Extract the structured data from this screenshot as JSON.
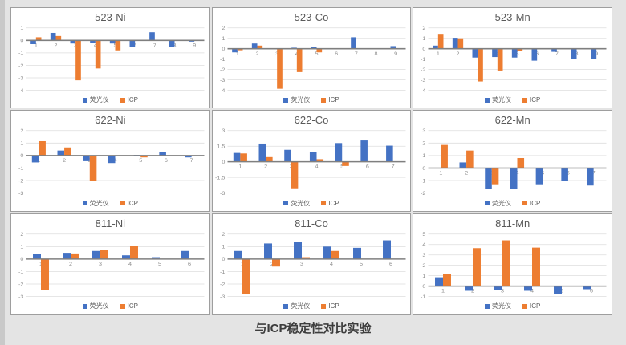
{
  "page": {
    "title": "与ICP稳定性对比实验"
  },
  "colors": {
    "series1": "#4472C4",
    "series2": "#ED7D31",
    "axis": "#7f7f7f",
    "gridline": "#dedede",
    "tick_label": "#8c8c8c",
    "chart_title": "#595959",
    "panel_border": "#9e9e9e",
    "background": "#e4e4e4"
  },
  "chart_data": [
    {
      "type": "bar",
      "title": "523-Ni",
      "categories": [
        "1",
        "2",
        "3",
        "4",
        "5",
        "6",
        "7",
        "8",
        "9"
      ],
      "series": [
        {
          "name": "荧光仪",
          "values": [
            -0.3,
            0.6,
            -0.25,
            -0.2,
            -0.25,
            -0.5,
            0.65,
            -0.5,
            -0.1
          ]
        },
        {
          "name": "ICP",
          "values": [
            0.25,
            0.35,
            -3.2,
            -2.25,
            -0.8,
            0,
            0,
            0,
            0
          ]
        }
      ],
      "ylim": [
        -4,
        1
      ],
      "yticks": [
        1,
        0,
        -1,
        -2,
        -3,
        -4
      ],
      "legend_position": "bottom",
      "grid": true
    },
    {
      "type": "bar",
      "title": "523-Co",
      "categories": [
        "1",
        "2",
        "3",
        "4",
        "5",
        "6",
        "7",
        "8",
        "9"
      ],
      "series": [
        {
          "name": "荧光仪",
          "values": [
            -0.35,
            0.5,
            -0.05,
            0.1,
            0.15,
            0,
            1.1,
            0,
            0.25
          ]
        },
        {
          "name": "ICP",
          "values": [
            -0.15,
            0.3,
            -3.85,
            -2.25,
            -0.35,
            0,
            0,
            0,
            0
          ]
        }
      ],
      "ylim": [
        -4,
        2
      ],
      "yticks": [
        2,
        1,
        0,
        -1,
        -2,
        -3,
        -4
      ],
      "legend_position": "bottom",
      "grid": true
    },
    {
      "type": "bar",
      "title": "523-Mn",
      "categories": [
        "1",
        "2",
        "3",
        "4",
        "5",
        "6",
        "7",
        "8",
        "9"
      ],
      "series": [
        {
          "name": "荧光仪",
          "values": [
            0.3,
            1.05,
            -0.85,
            -0.8,
            -0.85,
            -1.15,
            -0.3,
            -1.0,
            -0.95
          ]
        },
        {
          "name": "ICP",
          "values": [
            1.35,
            1.0,
            -3.15,
            -2.1,
            -0.25,
            0,
            0,
            0,
            0
          ]
        }
      ],
      "ylim": [
        -4,
        2
      ],
      "yticks": [
        2,
        1,
        0,
        -1,
        -2,
        -3,
        -4
      ],
      "legend_position": "bottom",
      "grid": true
    },
    {
      "type": "bar",
      "title": "622-Ni",
      "categories": [
        "1",
        "2",
        "3",
        "4",
        "5",
        "6",
        "7"
      ],
      "series": [
        {
          "name": "荧光仪",
          "values": [
            -0.55,
            0.4,
            -0.45,
            -0.6,
            0.05,
            0.3,
            -0.15
          ]
        },
        {
          "name": "ICP",
          "values": [
            1.15,
            0.65,
            -2.05,
            0,
            -0.15,
            0,
            0
          ]
        }
      ],
      "ylim": [
        -3,
        2
      ],
      "yticks": [
        2,
        1,
        0,
        -1,
        -2,
        -3
      ],
      "legend_position": "bottom",
      "grid": true
    },
    {
      "type": "bar",
      "title": "622-Co",
      "categories": [
        "1",
        "2",
        "3",
        "4",
        "5",
        "6",
        "7"
      ],
      "series": [
        {
          "name": "荧光仪",
          "values": [
            0.85,
            1.75,
            1.15,
            0.95,
            1.8,
            2.05,
            1.55
          ]
        },
        {
          "name": "ICP",
          "values": [
            0.8,
            0.45,
            -2.55,
            0.25,
            -0.4,
            0,
            0
          ]
        }
      ],
      "ylim": [
        -3,
        3
      ],
      "yticks": [
        3,
        1.5,
        0,
        -1.5,
        -3
      ],
      "legend_position": "bottom",
      "grid": true
    },
    {
      "type": "bar",
      "title": "622-Mn",
      "categories": [
        "1",
        "2",
        "3",
        "4",
        "5",
        "6",
        "7"
      ],
      "series": [
        {
          "name": "荧光仪",
          "values": [
            0,
            0.45,
            -1.7,
            -1.7,
            -1.3,
            -1.05,
            -1.4
          ]
        },
        {
          "name": "ICP",
          "values": [
            1.85,
            1.4,
            -1.3,
            0.8,
            0,
            0,
            0
          ]
        }
      ],
      "ylim": [
        -2,
        3
      ],
      "yticks": [
        3,
        2,
        1,
        0,
        -1,
        -2
      ],
      "legend_position": "bottom",
      "grid": true
    },
    {
      "type": "bar",
      "title": "811-Ni",
      "categories": [
        "1",
        "2",
        "3",
        "4",
        "5",
        "6"
      ],
      "series": [
        {
          "name": "荧光仪",
          "values": [
            0.4,
            0.5,
            0.65,
            0.3,
            0.15,
            0.65
          ]
        },
        {
          "name": "ICP",
          "values": [
            -2.5,
            0.45,
            0.75,
            1.05,
            0,
            0
          ]
        }
      ],
      "ylim": [
        -3,
        2
      ],
      "yticks": [
        2,
        1,
        0,
        -1,
        -2,
        -3
      ],
      "legend_position": "bottom",
      "grid": true
    },
    {
      "type": "bar",
      "title": "811-Co",
      "categories": [
        "1",
        "2",
        "3",
        "4",
        "5",
        "6"
      ],
      "series": [
        {
          "name": "荧光仪",
          "values": [
            0.65,
            1.25,
            1.35,
            1.0,
            0.9,
            1.5
          ]
        },
        {
          "name": "ICP",
          "values": [
            -2.8,
            -0.6,
            0.15,
            0.65,
            0,
            0
          ]
        }
      ],
      "ylim": [
        -3,
        2
      ],
      "yticks": [
        2,
        1,
        0,
        -1,
        -2,
        -3
      ],
      "legend_position": "bottom",
      "grid": true
    },
    {
      "type": "bar",
      "title": "811-Mn",
      "categories": [
        "1",
        "2",
        "3",
        "4",
        "5",
        "6"
      ],
      "series": [
        {
          "name": "荧光仪",
          "values": [
            0.85,
            -0.45,
            -0.35,
            -0.45,
            -0.75,
            -0.3
          ]
        },
        {
          "name": "ICP",
          "values": [
            1.15,
            3.65,
            4.4,
            3.7,
            0,
            0
          ]
        }
      ],
      "ylim": [
        -1,
        5
      ],
      "yticks": [
        5,
        4,
        3,
        2,
        1,
        0,
        -1
      ],
      "legend_position": "bottom",
      "grid": true
    }
  ]
}
